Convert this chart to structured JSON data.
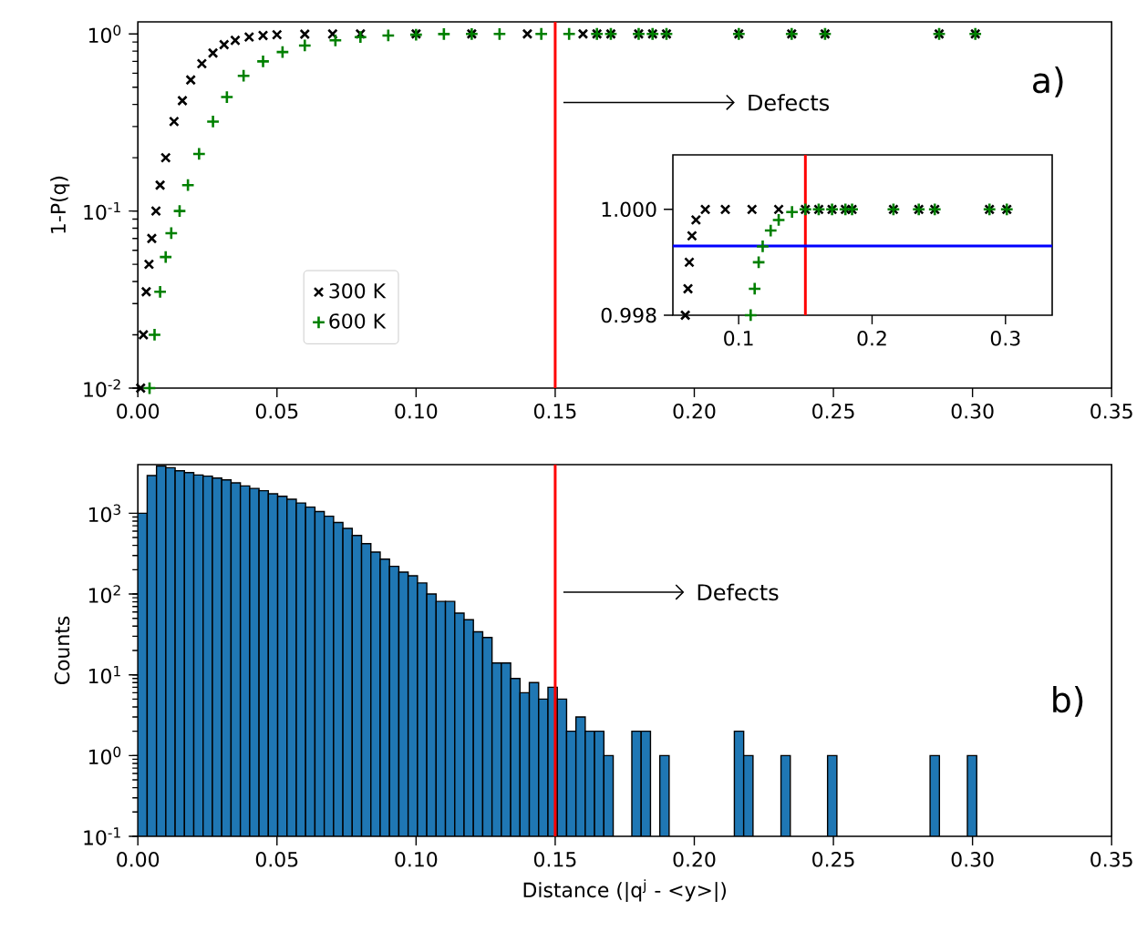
{
  "chart_data": [
    {
      "type": "scatter",
      "ylabel": "1-P(q)",
      "log": true,
      "legend": "bottom left",
      "xlim": [
        0,
        0.35
      ],
      "ylim": [
        0.01,
        1.17
      ],
      "xticks": [
        {
          "value": 0,
          "label": "0.00"
        },
        {
          "value": 0.05,
          "label": "0.05"
        },
        {
          "value": 0.1,
          "label": "0.10"
        },
        {
          "value": 0.15,
          "label": "0.15"
        },
        {
          "value": 0.2,
          "label": "0.20"
        },
        {
          "value": 0.25,
          "label": "0.25"
        },
        {
          "value": 0.3,
          "label": "0.30"
        },
        {
          "value": 0.35,
          "label": "0.35"
        }
      ],
      "yticks": [
        {
          "value": 0.01,
          "label": "10$^{-2}$"
        },
        {
          "value": 0.1,
          "label": "10$^{-1}$"
        },
        {
          "value": 1,
          "label": "10$^{0}$"
        }
      ],
      "series": [
        {
          "name": "300 K",
          "color": "#000000",
          "marker": "cross",
          "x": [
            0.001,
            0.002,
            0.003,
            0.004,
            0.005,
            0.0065,
            0.008,
            0.01,
            0.013,
            0.016,
            0.019,
            0.023,
            0.027,
            0.031,
            0.035,
            0.04,
            0.045,
            0.05,
            0.06,
            0.07,
            0.08,
            0.1,
            0.12,
            0.14,
            0.16,
            0.165,
            0.17,
            0.18,
            0.185,
            0.19,
            0.216,
            0.235,
            0.247,
            0.288,
            0.301
          ],
          "values": [
            0.01,
            0.02,
            0.035,
            0.05,
            0.07,
            0.1,
            0.14,
            0.2,
            0.32,
            0.42,
            0.55,
            0.68,
            0.78,
            0.87,
            0.92,
            0.96,
            0.98,
            0.99,
            0.997,
            0.9995,
            1,
            1,
            1,
            1,
            1,
            1,
            1,
            1,
            1,
            1,
            1,
            1,
            1,
            1,
            1
          ]
        },
        {
          "name": "600 K",
          "color": "#008000",
          "marker": "plus",
          "x": [
            0.0042,
            0.006,
            0.008,
            0.01,
            0.012,
            0.015,
            0.018,
            0.022,
            0.027,
            0.032,
            0.038,
            0.045,
            0.052,
            0.06,
            0.071,
            0.08,
            0.09,
            0.1,
            0.11,
            0.12,
            0.13,
            0.145,
            0.155,
            0.165,
            0.17,
            0.18,
            0.185,
            0.19,
            0.216,
            0.235,
            0.247,
            0.288,
            0.301
          ],
          "values": [
            0.01,
            0.02,
            0.035,
            0.055,
            0.075,
            0.1,
            0.14,
            0.21,
            0.32,
            0.44,
            0.58,
            0.7,
            0.79,
            0.86,
            0.92,
            0.96,
            0.98,
            0.99,
            0.998,
            0.9993,
            0.9998,
            1,
            1,
            1,
            1,
            1,
            1,
            1,
            1,
            1,
            1,
            1,
            1
          ]
        }
      ],
      "ref_lines": [
        {
          "axis": "x",
          "value": 0.15,
          "color": "#ff0000"
        }
      ],
      "annotations": [
        "Defects",
        "a)"
      ]
    },
    {
      "type": "scatter",
      "xlim": [
        0.0507,
        0.335
      ],
      "ylim": [
        0.998,
        1.00103
      ],
      "xticks": [
        0.1,
        0.2,
        0.3
      ],
      "yticks": [
        {
          "value": 0.998,
          "label": "0.998"
        },
        {
          "value": 1,
          "label": "1.000"
        }
      ],
      "series": [
        {
          "color": "#000000",
          "marker": "cross",
          "x": [
            0.06,
            0.062,
            0.063,
            0.065,
            0.068,
            0.075,
            0.09,
            0.11,
            0.13,
            0.15,
            0.16,
            0.17,
            0.18,
            0.185,
            0.216,
            0.235,
            0.247,
            0.288,
            0.301
          ],
          "values": [
            0.998,
            0.9985,
            0.999,
            0.9995,
            0.9998,
            1,
            1,
            1,
            1,
            1,
            1,
            1,
            1,
            1,
            1,
            1,
            1,
            1,
            1
          ]
        },
        {
          "color": "#008000",
          "marker": "plus",
          "x": [
            0.109,
            0.112,
            0.115,
            0.118,
            0.124,
            0.13,
            0.14,
            0.15,
            0.16,
            0.17,
            0.18,
            0.185,
            0.216,
            0.235,
            0.247,
            0.288,
            0.301
          ],
          "values": [
            0.998,
            0.9985,
            0.999,
            0.9993,
            0.9996,
            0.9998,
            0.99995,
            1,
            1,
            1,
            1,
            1,
            1,
            1,
            1,
            1,
            1
          ]
        }
      ],
      "ref_lines": [
        {
          "axis": "x",
          "value": 0.15,
          "color": "#ff0000"
        },
        {
          "axis": "y",
          "value": 0.99931,
          "color": "#0000ff"
        }
      ]
    },
    {
      "type": "histogram",
      "xlabel": "Distance (|q$^{j}$ - <y>|)",
      "ylabel": "Counts",
      "log": true,
      "color": "#1f77b4",
      "xlim": [
        0,
        0.35
      ],
      "ylim": [
        0.1,
        4000
      ],
      "xticks": [
        {
          "value": 0,
          "label": "0.00"
        },
        {
          "value": 0.05,
          "label": "0.05"
        },
        {
          "value": 0.1,
          "label": "0.10"
        },
        {
          "value": 0.15,
          "label": "0.15"
        },
        {
          "value": 0.2,
          "label": "0.20"
        },
        {
          "value": 0.25,
          "label": "0.25"
        },
        {
          "value": 0.3,
          "label": "0.30"
        },
        {
          "value": 0.35,
          "label": "0.35"
        }
      ],
      "yticks": [
        {
          "value": 0.1,
          "label": "10$^{-1}$"
        },
        {
          "value": 1,
          "label": "10$^{0}$"
        },
        {
          "value": 10,
          "label": "10$^{1}$"
        },
        {
          "value": 100,
          "label": "10$^{2}$"
        },
        {
          "value": 1000,
          "label": "10$^{3}$"
        }
      ],
      "bins": [
        0,
        0.00335,
        0.0067,
        0.01005,
        0.0134,
        0.01675,
        0.0201,
        0.02345,
        0.0268,
        0.03015,
        0.0335,
        0.03685,
        0.0402,
        0.04355,
        0.0469,
        0.05025,
        0.0536,
        0.05695,
        0.0603,
        0.06365,
        0.067,
        0.07035,
        0.0737,
        0.07705,
        0.0804,
        0.08375,
        0.0871,
        0.09045,
        0.0938,
        0.09715,
        0.1005,
        0.10385,
        0.1072,
        0.11055,
        0.1139,
        0.11725,
        0.1206,
        0.12395,
        0.1273,
        0.13065,
        0.134,
        0.13735,
        0.1407,
        0.14405,
        0.1474,
        0.15075,
        0.1541,
        0.15745,
        0.1608,
        0.16415,
        0.1675,
        0.17085,
        0.1742,
        0.17755,
        0.1809,
        0.18425,
        0.1876,
        0.19095,
        0.1943,
        0.19765,
        0.201,
        0.20435,
        0.2077,
        0.21105,
        0.2144,
        0.21775,
        0.2211,
        0.22445,
        0.2278,
        0.23115,
        0.2345,
        0.23785,
        0.2412,
        0.24455,
        0.2479,
        0.25125,
        0.2546,
        0.25795,
        0.2613,
        0.26465,
        0.268,
        0.27135,
        0.2747,
        0.27805,
        0.2814,
        0.28475,
        0.2881,
        0.29145,
        0.2948,
        0.29815,
        0.3015
      ],
      "values": [
        1000,
        2930,
        3850,
        3660,
        3360,
        3190,
        2980,
        2880,
        2730,
        2590,
        2380,
        2180,
        2030,
        1900,
        1740,
        1620,
        1490,
        1340,
        1190,
        1050,
        920,
        770,
        650,
        530,
        420,
        330,
        270,
        220,
        187,
        168,
        137,
        100,
        81,
        81,
        58,
        48,
        34,
        29,
        14,
        14,
        9,
        6,
        8,
        5,
        7,
        5,
        2,
        3,
        2,
        2,
        1,
        null,
        null,
        2,
        2,
        null,
        1,
        null,
        null,
        null,
        null,
        null,
        null,
        null,
        2,
        1,
        null,
        null,
        null,
        1,
        null,
        null,
        null,
        null,
        1,
        null,
        null,
        null,
        null,
        null,
        null,
        null,
        null,
        null,
        null,
        1,
        null,
        null,
        null,
        1
      ],
      "ref_lines": [
        {
          "axis": "x",
          "value": 0.15,
          "color": "#ff0000"
        }
      ],
      "annotations": [
        "Defects",
        "b)"
      ]
    }
  ]
}
